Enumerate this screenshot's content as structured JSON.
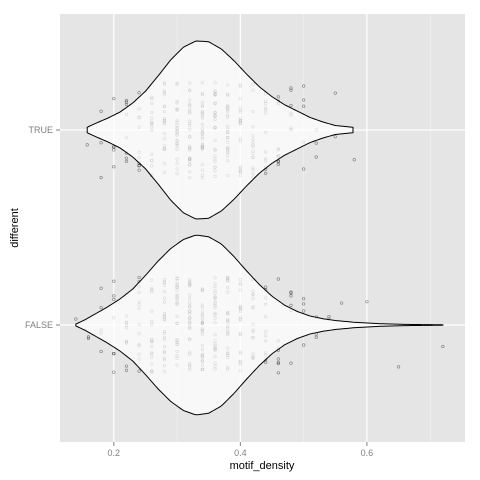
{
  "chart_data": {
    "type": "violin",
    "title": "",
    "xlabel": "motif_density",
    "ylabel": "different",
    "xlim": [
      0.115,
      0.755
    ],
    "x_ticks": [
      0.2,
      0.4,
      0.6
    ],
    "x_tick_labels": [
      "0.2",
      "0.4",
      "0.6"
    ],
    "categories": [
      "TRUE",
      "FALSE"
    ],
    "grid": true,
    "legend": "none",
    "colors": {
      "panel_background": "#e5e5e5",
      "grid_major": "#ffffff",
      "grid_minor": "#f2f2f2",
      "violin_fill": "#ffffff",
      "violin_outline": "#000000",
      "points": "#000000"
    },
    "series": [
      {
        "category": "TRUE",
        "range": [
          0.158,
          0.578
        ],
        "density_profile": [
          [
            0.158,
            0.03
          ],
          [
            0.17,
            0.07
          ],
          [
            0.19,
            0.13
          ],
          [
            0.21,
            0.2
          ],
          [
            0.23,
            0.3
          ],
          [
            0.25,
            0.43
          ],
          [
            0.27,
            0.6
          ],
          [
            0.29,
            0.78
          ],
          [
            0.31,
            0.92
          ],
          [
            0.33,
            0.99
          ],
          [
            0.35,
            0.98
          ],
          [
            0.37,
            0.9
          ],
          [
            0.39,
            0.77
          ],
          [
            0.41,
            0.62
          ],
          [
            0.43,
            0.48
          ],
          [
            0.45,
            0.37
          ],
          [
            0.47,
            0.28
          ],
          [
            0.49,
            0.21
          ],
          [
            0.51,
            0.14
          ],
          [
            0.53,
            0.09
          ],
          [
            0.55,
            0.05
          ],
          [
            0.578,
            0.03
          ]
        ],
        "observed_x_values": [
          0.158,
          0.18,
          0.2,
          0.22,
          0.24,
          0.26,
          0.28,
          0.3,
          0.32,
          0.34,
          0.36,
          0.38,
          0.4,
          0.42,
          0.44,
          0.46,
          0.48,
          0.5,
          0.52,
          0.55,
          0.58
        ]
      },
      {
        "category": "FALSE",
        "range": [
          0.14,
          0.72
        ],
        "density_profile": [
          [
            0.14,
            0.01
          ],
          [
            0.155,
            0.06
          ],
          [
            0.17,
            0.12
          ],
          [
            0.19,
            0.2
          ],
          [
            0.21,
            0.29
          ],
          [
            0.23,
            0.4
          ],
          [
            0.25,
            0.55
          ],
          [
            0.27,
            0.71
          ],
          [
            0.29,
            0.85
          ],
          [
            0.31,
            0.95
          ],
          [
            0.33,
            1.0
          ],
          [
            0.35,
            0.98
          ],
          [
            0.37,
            0.9
          ],
          [
            0.39,
            0.76
          ],
          [
            0.41,
            0.6
          ],
          [
            0.43,
            0.45
          ],
          [
            0.45,
            0.32
          ],
          [
            0.47,
            0.22
          ],
          [
            0.49,
            0.15
          ],
          [
            0.51,
            0.1
          ],
          [
            0.53,
            0.07
          ],
          [
            0.55,
            0.05
          ],
          [
            0.58,
            0.03
          ],
          [
            0.62,
            0.015
          ],
          [
            0.66,
            0.007
          ],
          [
            0.72,
            0.002
          ]
        ],
        "observed_x_values": [
          0.14,
          0.16,
          0.18,
          0.2,
          0.22,
          0.24,
          0.26,
          0.28,
          0.3,
          0.32,
          0.34,
          0.36,
          0.38,
          0.4,
          0.42,
          0.44,
          0.46,
          0.48,
          0.5,
          0.52,
          0.54,
          0.56,
          0.6,
          0.65,
          0.72
        ]
      }
    ]
  }
}
